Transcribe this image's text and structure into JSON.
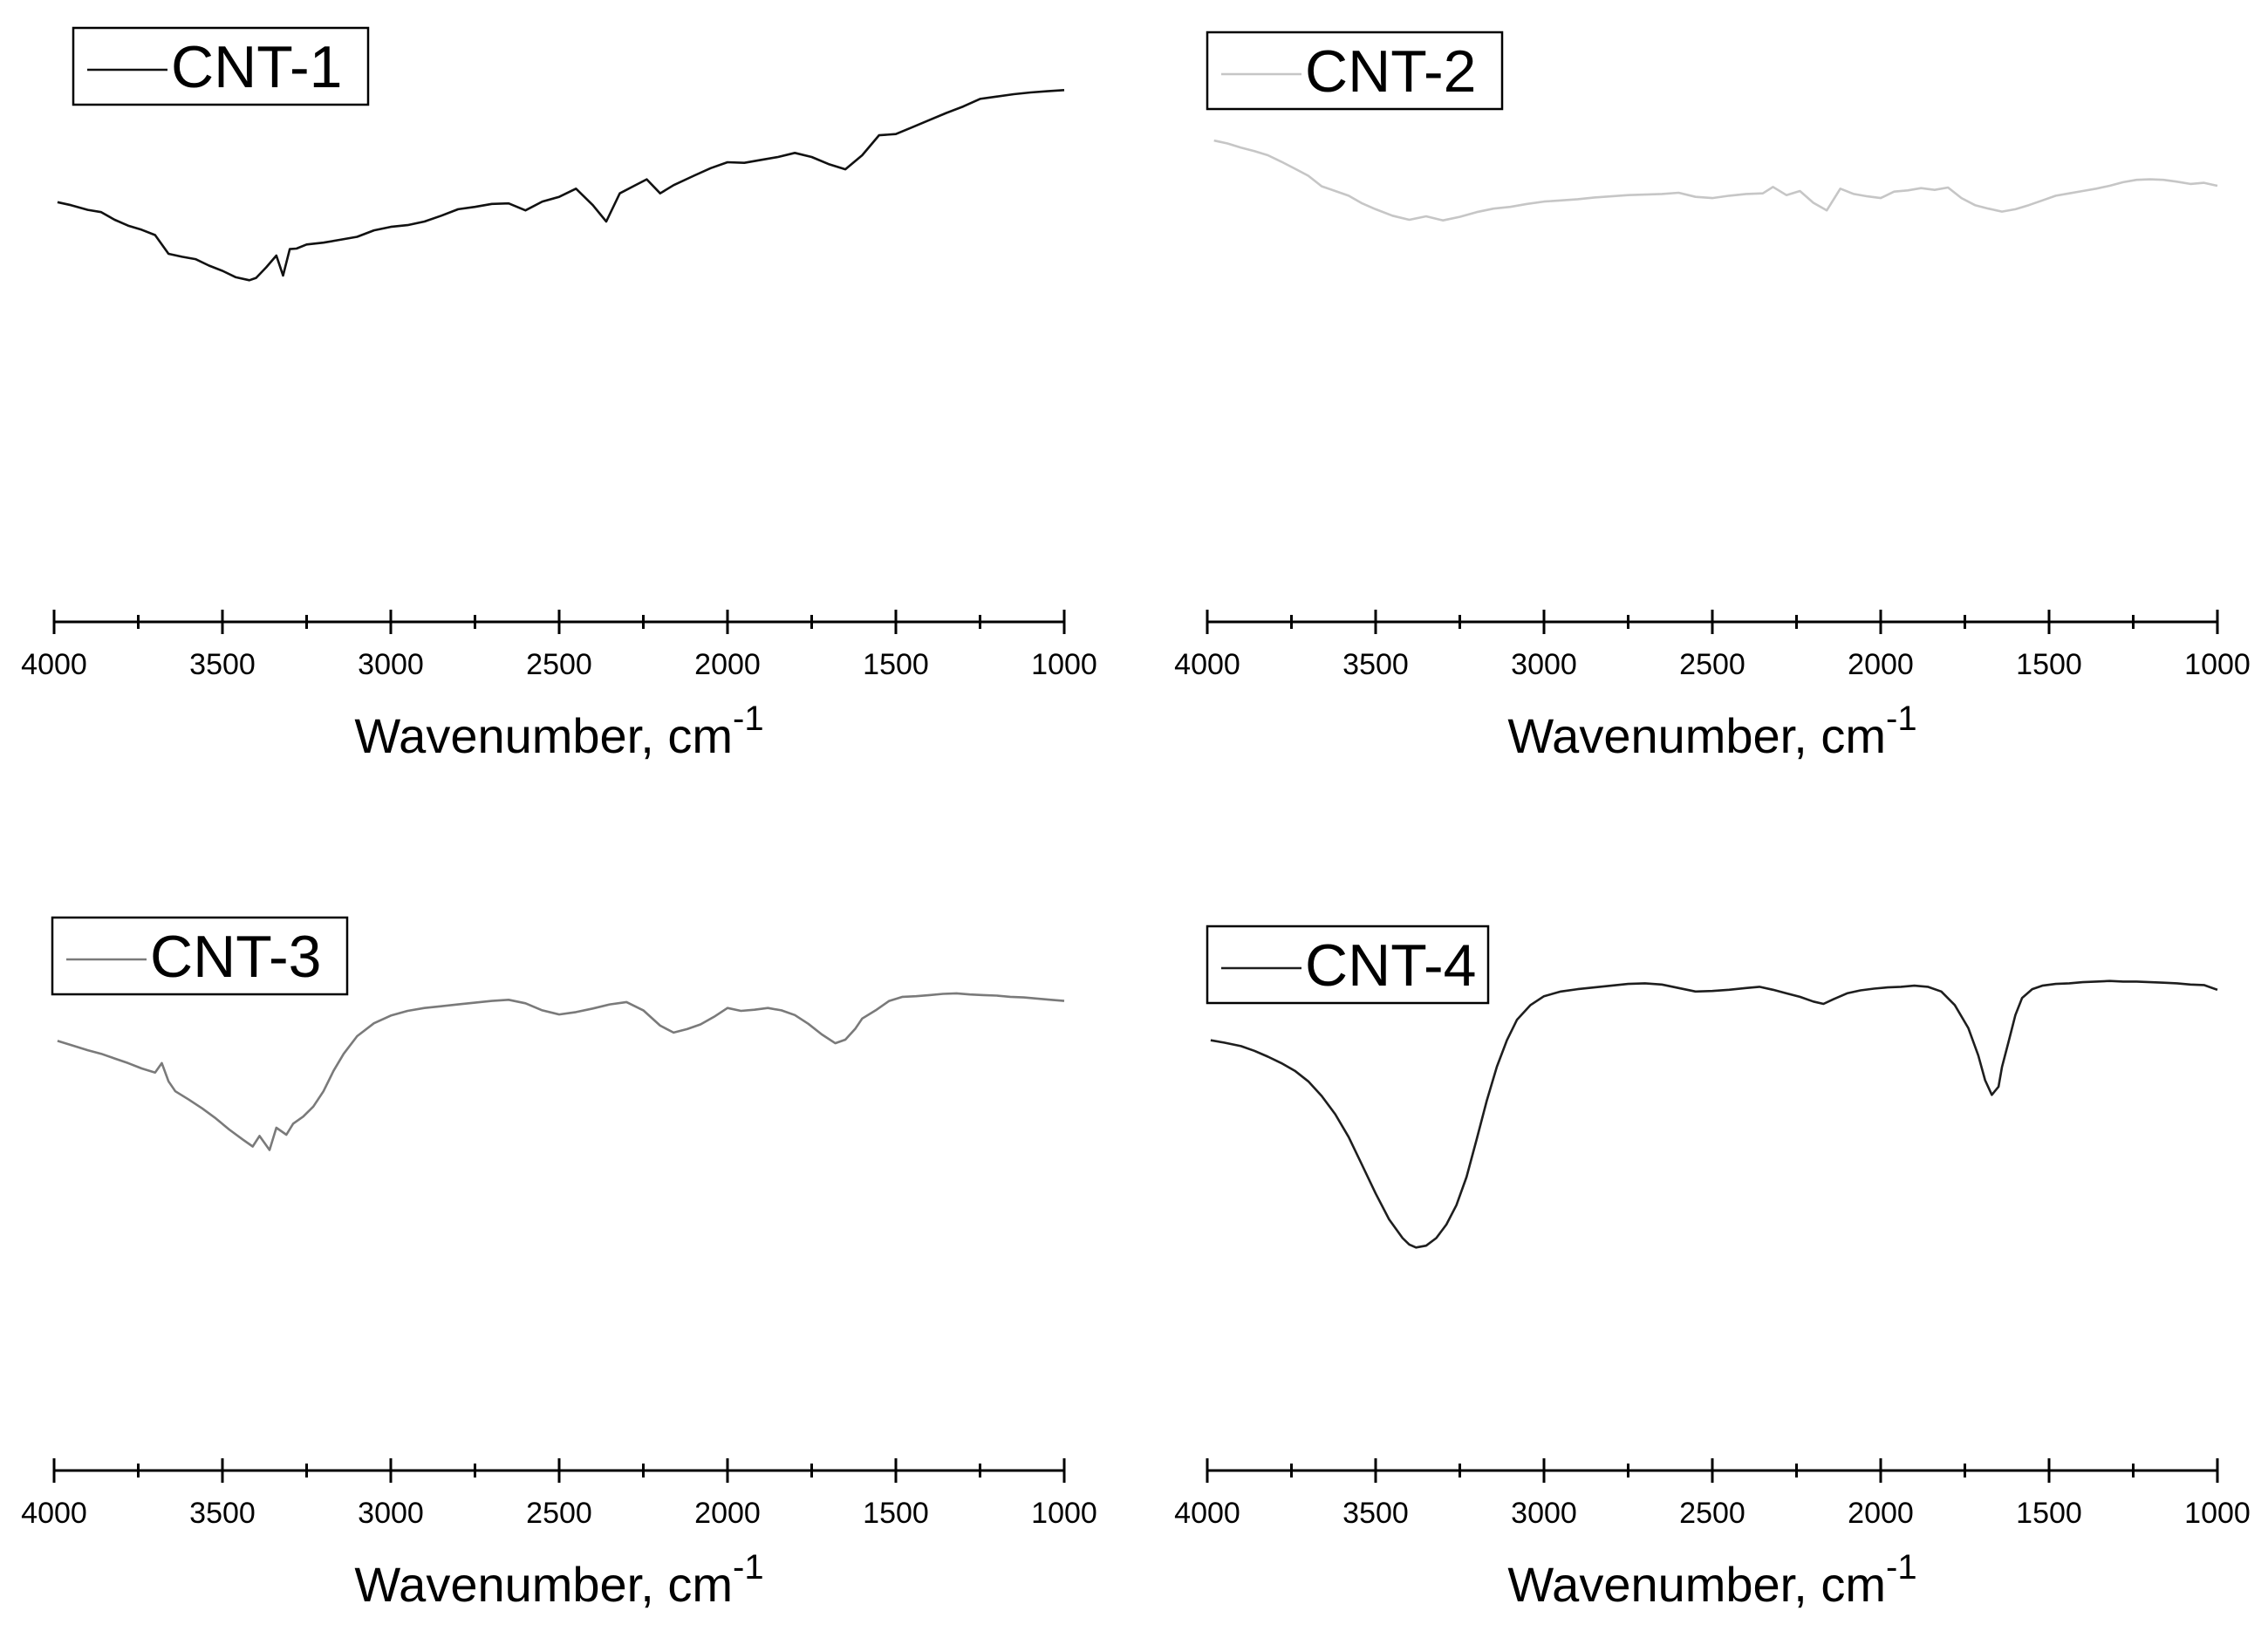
{
  "chart_data": [
    {
      "type": "line",
      "xlabel": "Wavenumber, cm",
      "xlabel_sup": "-1",
      "ylabel": "",
      "xlim": [
        4000,
        1000
      ],
      "xticks": [
        "4000",
        "3500",
        "3000",
        "2500",
        "2000",
        "1500",
        "1000"
      ],
      "ylim": [
        0,
        100
      ],
      "grid": false,
      "legend_position": "top-left",
      "series": [
        {
          "name": "CNT-1",
          "color": "#111111",
          "x": [
            3990,
            3950,
            3900,
            3860,
            3820,
            3780,
            3740,
            3700,
            3660,
            3620,
            3580,
            3540,
            3500,
            3460,
            3420,
            3400,
            3370,
            3340,
            3320,
            3300,
            3280,
            3250,
            3200,
            3150,
            3100,
            3050,
            3000,
            2950,
            2900,
            2850,
            2800,
            2750,
            2700,
            2650,
            2600,
            2550,
            2500,
            2450,
            2400,
            2360,
            2320,
            2280,
            2240,
            2200,
            2160,
            2100,
            2050,
            2000,
            1950,
            1900,
            1850,
            1800,
            1750,
            1700,
            1650,
            1600,
            1550,
            1500,
            1450,
            1400,
            1350,
            1300,
            1250,
            1200,
            1150,
            1100,
            1050,
            1000
          ],
          "y": [
            71.5,
            71.0,
            70.2,
            69.8,
            68.5,
            67.5,
            66.8,
            65.9,
            62.7,
            62.2,
            61.8,
            60.7,
            59.8,
            58.7,
            58.2,
            58.6,
            60.4,
            62.4,
            59.0,
            63.5,
            63.6,
            64.3,
            64.6,
            65.1,
            65.6,
            66.7,
            67.3,
            67.6,
            68.2,
            69.2,
            70.3,
            70.7,
            71.2,
            71.3,
            70.1,
            71.6,
            72.4,
            73.8,
            71.0,
            68.2,
            73.0,
            74.2,
            75.4,
            73.0,
            74.4,
            76.0,
            77.3,
            78.3,
            78.2,
            78.7,
            79.2,
            79.9,
            79.2,
            78.0,
            77.1,
            79.5,
            82.9,
            83.1,
            84.3,
            85.5,
            86.7,
            87.8,
            89.1,
            89.5,
            89.9,
            90.2,
            90.4,
            90.6
          ]
        }
      ]
    },
    {
      "type": "line",
      "xlabel": "Wavenumber, cm",
      "xlabel_sup": "-1",
      "ylabel": "",
      "xlim": [
        4000,
        1000
      ],
      "xticks": [
        "4000",
        "3500",
        "3000",
        "2500",
        "2000",
        "1500",
        "1000"
      ],
      "ylim": [
        0,
        100
      ],
      "grid": false,
      "legend_position": "top-left",
      "series": [
        {
          "name": "CNT-2",
          "color": "#c6c6c6",
          "x": [
            3980,
            3940,
            3900,
            3860,
            3820,
            3780,
            3740,
            3700,
            3660,
            3620,
            3580,
            3540,
            3500,
            3450,
            3400,
            3350,
            3300,
            3250,
            3200,
            3150,
            3100,
            3050,
            3000,
            2950,
            2900,
            2850,
            2800,
            2750,
            2700,
            2650,
            2600,
            2550,
            2500,
            2450,
            2400,
            2350,
            2320,
            2280,
            2240,
            2200,
            2160,
            2120,
            2080,
            2040,
            2000,
            1960,
            1920,
            1880,
            1840,
            1800,
            1760,
            1720,
            1680,
            1640,
            1600,
            1560,
            1520,
            1480,
            1440,
            1400,
            1360,
            1320,
            1280,
            1240,
            1200,
            1160,
            1120,
            1080,
            1040,
            1000
          ],
          "y": [
            82.0,
            81.5,
            80.8,
            80.2,
            79.5,
            78.4,
            77.2,
            76.0,
            74.2,
            73.4,
            72.6,
            71.3,
            70.3,
            69.2,
            68.5,
            69.1,
            68.4,
            69.0,
            69.8,
            70.4,
            70.7,
            71.2,
            71.6,
            71.8,
            72.0,
            72.3,
            72.5,
            72.7,
            72.8,
            72.9,
            73.1,
            72.4,
            72.2,
            72.6,
            72.9,
            73.0,
            74.1,
            72.7,
            73.4,
            71.4,
            70.1,
            73.8,
            72.9,
            72.5,
            72.2,
            73.3,
            73.5,
            73.9,
            73.6,
            74.0,
            72.2,
            71.0,
            70.4,
            69.9,
            70.3,
            71.0,
            71.8,
            72.6,
            73.0,
            73.4,
            73.8,
            74.3,
            74.9,
            75.3,
            75.4,
            75.3,
            75.0,
            74.6,
            74.8,
            74.3
          ]
        }
      ]
    },
    {
      "type": "line",
      "xlabel": "Wavenumber, cm",
      "xlabel_sup": "-1",
      "ylabel": "",
      "xlim": [
        4000,
        1000
      ],
      "xticks": [
        "4000",
        "3500",
        "3000",
        "2500",
        "2000",
        "1500",
        "1000"
      ],
      "ylim": [
        0,
        100
      ],
      "grid": false,
      "legend_position": "top-left",
      "series": [
        {
          "name": "CNT-3",
          "color": "#7a7a7a",
          "x": [
            3990,
            3950,
            3900,
            3860,
            3820,
            3780,
            3740,
            3700,
            3680,
            3660,
            3640,
            3600,
            3560,
            3520,
            3480,
            3440,
            3410,
            3390,
            3360,
            3340,
            3310,
            3290,
            3260,
            3230,
            3200,
            3170,
            3140,
            3100,
            3050,
            3000,
            2950,
            2900,
            2850,
            2800,
            2750,
            2700,
            2650,
            2600,
            2550,
            2500,
            2450,
            2400,
            2350,
            2300,
            2250,
            2200,
            2160,
            2120,
            2080,
            2040,
            2000,
            1960,
            1920,
            1880,
            1840,
            1800,
            1760,
            1720,
            1680,
            1650,
            1620,
            1600,
            1560,
            1520,
            1480,
            1440,
            1400,
            1360,
            1320,
            1280,
            1240,
            1200,
            1160,
            1120,
            1080,
            1040,
            1000
          ],
          "y": [
            73.2,
            72.5,
            71.6,
            71.0,
            70.2,
            69.4,
            68.5,
            67.8,
            69.4,
            66.3,
            64.6,
            63.2,
            61.7,
            60.0,
            58.1,
            56.4,
            55.2,
            57.0,
            54.6,
            58.4,
            57.2,
            59.1,
            60.3,
            62.0,
            64.6,
            68.1,
            71.0,
            74.0,
            76.2,
            77.5,
            78.3,
            78.8,
            79.1,
            79.4,
            79.7,
            80.0,
            80.2,
            79.6,
            78.4,
            77.7,
            78.1,
            78.7,
            79.4,
            79.8,
            78.4,
            75.8,
            74.6,
            75.2,
            76.0,
            77.3,
            78.8,
            78.3,
            78.5,
            78.8,
            78.4,
            77.6,
            76.1,
            74.3,
            72.8,
            73.4,
            75.3,
            77.0,
            78.4,
            80.0,
            80.7,
            80.8,
            81.0,
            81.2,
            81.3,
            81.1,
            81.0,
            80.9,
            80.7,
            80.6,
            80.4,
            80.2,
            80.0
          ]
        }
      ]
    },
    {
      "type": "line",
      "xlabel": "Wavenumber, cm",
      "xlabel_sup": "-1",
      "ylabel": "",
      "xlim": [
        4000,
        1000
      ],
      "xticks": [
        "4000",
        "3500",
        "3000",
        "2500",
        "2000",
        "1500",
        "1000"
      ],
      "ylim": [
        0,
        100
      ],
      "grid": false,
      "legend_position": "top-left",
      "series": [
        {
          "name": "CNT-4",
          "color": "#1e1e1e",
          "x": [
            3990,
            3950,
            3900,
            3860,
            3820,
            3780,
            3740,
            3700,
            3660,
            3620,
            3580,
            3540,
            3500,
            3460,
            3420,
            3400,
            3380,
            3350,
            3320,
            3290,
            3260,
            3230,
            3200,
            3170,
            3140,
            3110,
            3080,
            3040,
            3000,
            2950,
            2900,
            2850,
            2800,
            2750,
            2700,
            2650,
            2600,
            2550,
            2500,
            2450,
            2400,
            2360,
            2320,
            2280,
            2240,
            2200,
            2170,
            2140,
            2100,
            2060,
            2020,
            1980,
            1940,
            1900,
            1860,
            1820,
            1780,
            1740,
            1710,
            1690,
            1670,
            1650,
            1640,
            1620,
            1600,
            1580,
            1550,
            1520,
            1480,
            1440,
            1400,
            1360,
            1320,
            1280,
            1240,
            1200,
            1160,
            1120,
            1080,
            1040,
            1000
          ],
          "y": [
            73.3,
            72.9,
            72.3,
            71.5,
            70.5,
            69.4,
            68.1,
            66.3,
            63.8,
            60.7,
            56.8,
            52.0,
            47.2,
            42.8,
            39.6,
            38.5,
            38.0,
            38.3,
            39.6,
            41.9,
            45.2,
            50.0,
            56.4,
            63.0,
            68.8,
            73.3,
            76.8,
            79.3,
            80.8,
            81.6,
            82.0,
            82.3,
            82.6,
            82.9,
            83.0,
            82.8,
            82.2,
            81.6,
            81.7,
            81.9,
            82.2,
            82.4,
            81.9,
            81.3,
            80.7,
            79.9,
            79.5,
            80.3,
            81.3,
            81.8,
            82.1,
            82.3,
            82.4,
            82.6,
            82.4,
            81.6,
            79.3,
            75.4,
            70.7,
            66.5,
            64.0,
            65.4,
            68.7,
            73.1,
            77.6,
            80.5,
            82.0,
            82.6,
            82.9,
            83.0,
            83.2,
            83.3,
            83.4,
            83.3,
            83.3,
            83.2,
            83.1,
            83.0,
            82.8,
            82.7,
            81.9
          ]
        }
      ]
    }
  ]
}
